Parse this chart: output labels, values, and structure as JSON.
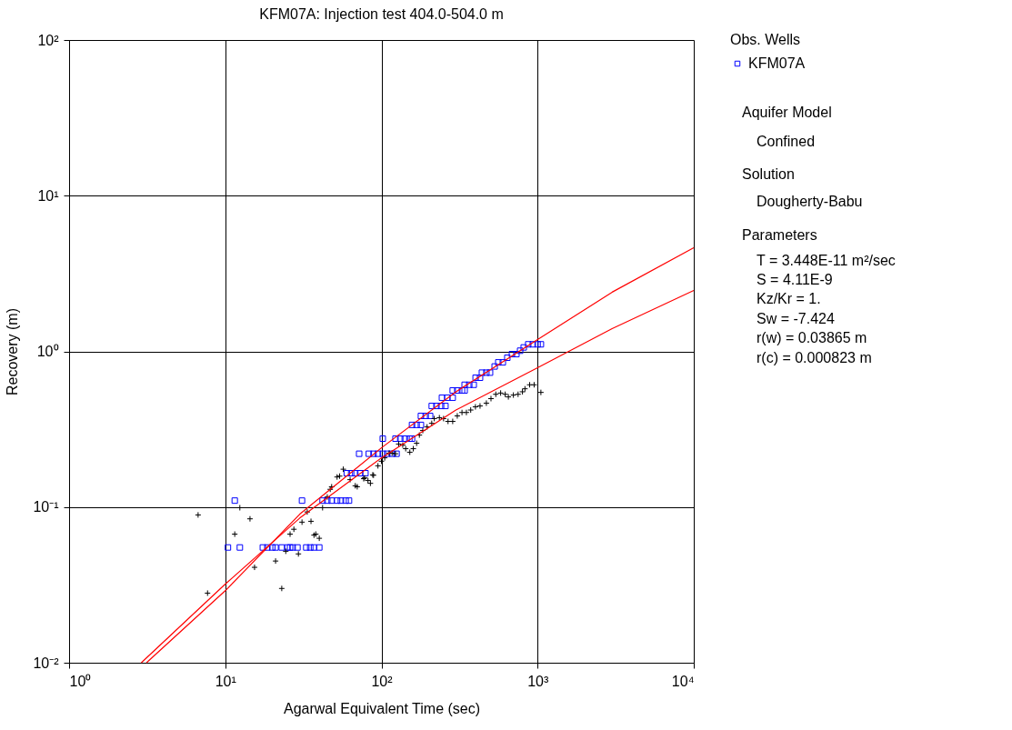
{
  "chart_data": {
    "type": "scatter",
    "title": "KFM07A: Injection test 404.0-504.0 m",
    "xlabel": "Agarwal Equivalent Time (sec)",
    "ylabel": "Recovery (m)",
    "legend_title": "Obs. Wells",
    "legend": "right",
    "log": "xy",
    "grid": true,
    "xlim": [
      1,
      10000
    ],
    "ylim": [
      0.01,
      100
    ],
    "xticks": [
      {
        "value": 1,
        "label": "10⁰"
      },
      {
        "value": 10,
        "label": "10¹"
      },
      {
        "value": 100,
        "label": "10²"
      },
      {
        "value": 1000,
        "label": "10³"
      },
      {
        "value": 10000,
        "label": "10⁴"
      }
    ],
    "yticks": [
      {
        "value": 0.01,
        "label": "10⁻²"
      },
      {
        "value": 0.1,
        "label": "10⁻¹"
      },
      {
        "value": 1,
        "label": "10⁰"
      },
      {
        "value": 10,
        "label": "10¹"
      },
      {
        "value": 100,
        "label": "10²"
      }
    ],
    "series": [
      {
        "name": "KFM07A",
        "marker": "square",
        "color": "#0000ff",
        "x": [
          10.4,
          12.4,
          17.4,
          18.6,
          20,
          21,
          23,
          25,
          26,
          27,
          29,
          33,
          35,
          37,
          40,
          11.5,
          31,
          42,
          45,
          48,
          52,
          55,
          59,
          62,
          60,
          64,
          68,
          73,
          79,
          72,
          83,
          89,
          95,
          102,
          109,
          117,
          125,
          102,
          123,
          132,
          141,
          151,
          157,
          157,
          168,
          179,
          179,
          192,
          205,
          210,
          225,
          241,
          257,
          244,
          264,
          286,
          286,
          306,
          328,
          341,
          341,
          365,
          390,
          401,
          428,
          440,
          470,
          496,
          531,
          560,
          599,
          640,
          685,
          732,
          773,
          815,
          871,
          932,
          1000,
          1050
        ],
        "values": [
          0.055,
          0.055,
          0.055,
          0.055,
          0.055,
          0.055,
          0.055,
          0.055,
          0.055,
          0.055,
          0.055,
          0.055,
          0.055,
          0.055,
          0.055,
          0.11,
          0.11,
          0.11,
          0.11,
          0.11,
          0.11,
          0.11,
          0.11,
          0.11,
          0.165,
          0.165,
          0.165,
          0.165,
          0.165,
          0.22,
          0.22,
          0.22,
          0.22,
          0.22,
          0.22,
          0.22,
          0.22,
          0.275,
          0.275,
          0.275,
          0.275,
          0.275,
          0.275,
          0.337,
          0.337,
          0.337,
          0.385,
          0.385,
          0.385,
          0.446,
          0.446,
          0.446,
          0.446,
          0.504,
          0.504,
          0.504,
          0.561,
          0.561,
          0.561,
          0.561,
          0.61,
          0.61,
          0.61,
          0.677,
          0.677,
          0.73,
          0.73,
          0.73,
          0.8,
          0.85,
          0.85,
          0.91,
          0.96,
          0.96,
          1.01,
          1.06,
          1.11,
          1.11,
          1.11,
          1.11
        ]
      },
      {
        "marker": "cross",
        "color": "#000000",
        "x": [
          6.7,
          7.7,
          12.4,
          14.4,
          11.5,
          15.4,
          21,
          23,
          24.4,
          29.4,
          26,
          27.5,
          31,
          35.4,
          33.5,
          37,
          38,
          40,
          42,
          45,
          47,
          48,
          52,
          54,
          57,
          63,
          68,
          70,
          77,
          82,
          85,
          88,
          78,
          89,
          95,
          100,
          105,
          112,
          117,
          123,
          129,
          137,
          143,
          152,
          160,
          168,
          175,
          184,
          196,
          210,
          218,
          235,
          250,
          267,
          286,
          306,
          328,
          350,
          373,
          400,
          428,
          470,
          503,
          540,
          580,
          620,
          650,
          700,
          750,
          800,
          830,
          890,
          950,
          1050
        ],
        "values": [
          0.089,
          0.028,
          0.099,
          0.084,
          0.067,
          0.041,
          0.045,
          0.03,
          0.052,
          0.05,
          0.067,
          0.072,
          0.08,
          0.081,
          0.093,
          0.066,
          0.067,
          0.063,
          0.099,
          0.116,
          0.13,
          0.135,
          0.156,
          0.158,
          0.175,
          0.15,
          0.137,
          0.135,
          0.152,
          0.148,
          0.142,
          0.161,
          0.154,
          0.16,
          0.184,
          0.197,
          0.207,
          0.222,
          0.222,
          0.22,
          0.254,
          0.25,
          0.237,
          0.225,
          0.237,
          0.257,
          0.29,
          0.31,
          0.327,
          0.345,
          0.37,
          0.375,
          0.37,
          0.355,
          0.355,
          0.385,
          0.405,
          0.405,
          0.42,
          0.44,
          0.446,
          0.465,
          0.497,
          0.53,
          0.54,
          0.53,
          0.51,
          0.524,
          0.53,
          0.55,
          0.575,
          0.61,
          0.61,
          0.545
        ]
      },
      {
        "type": "line",
        "color": "#ff0000",
        "x": [
          3.13,
          10,
          30,
          100,
          300,
          1000,
          3000,
          10000
        ],
        "values": [
          0.01,
          0.029,
          0.09,
          0.24,
          0.55,
          1.19,
          2.4,
          4.63
        ]
      },
      {
        "type": "line",
        "color": "#ff0000",
        "x": [
          2.9,
          10,
          30,
          100,
          300,
          1000,
          3000,
          10000
        ],
        "values": [
          0.01,
          0.032,
          0.085,
          0.207,
          0.42,
          0.785,
          1.4,
          2.46
        ]
      }
    ],
    "annotations": [
      "Aquifer Model",
      "Confined",
      "Solution",
      "Dougherty-Babu",
      "Parameters",
      "T       = 3.448E-11 m²/sec",
      "S       = 4.11E-9",
      "Kz/Kr = 1.",
      "Sw     = -7.424",
      "r(w)   = 0.03865 m",
      "r(c)    = 0.000823 m"
    ]
  }
}
